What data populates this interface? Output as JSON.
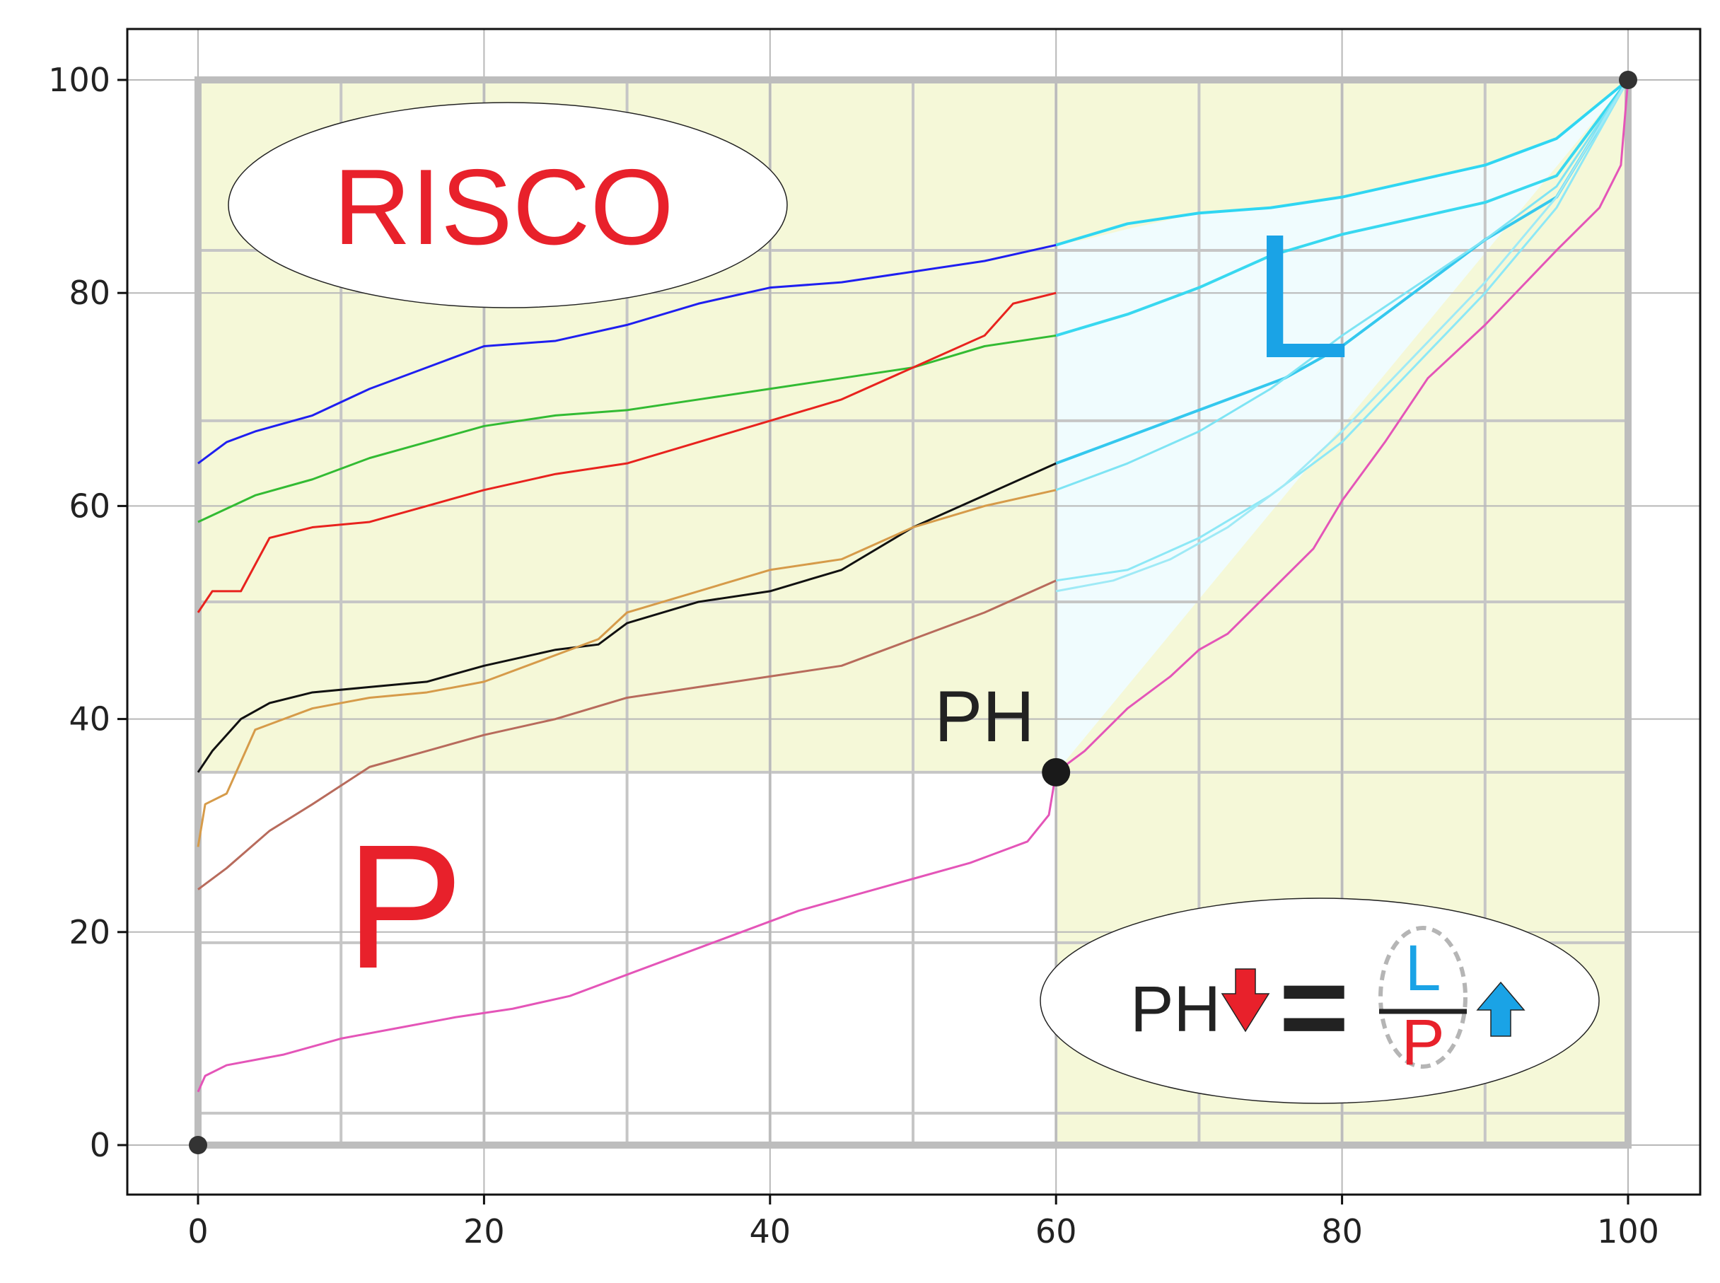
{
  "chart_data": {
    "type": "line",
    "title": "",
    "xlabel": "",
    "ylabel": "",
    "xlim": [
      -5,
      105
    ],
    "ylim": [
      -5,
      105
    ],
    "x_ticks": [
      0,
      20,
      40,
      60,
      80,
      100
    ],
    "y_ticks": [
      0,
      20,
      40,
      60,
      80,
      100
    ],
    "grid": true,
    "inner_grid_step": 10,
    "colors": {
      "plot_bg": "#f5f8d8",
      "light_region": "#f0fcfe",
      "white_region": "#ffffff",
      "grid_major": "#b8b8b8",
      "grid_inner": "#c6c6c6",
      "risco_text": "#e8212b",
      "p_text": "#e8212b",
      "l_text": "#1aa3e6",
      "ph_text": "#222222",
      "arrow_down": "#e8212b",
      "arrow_up": "#1aa3e6"
    },
    "annotations": {
      "risco": "RISCO",
      "p_label": "P",
      "l_label": "L",
      "ph_label": "PH",
      "formula_left": "PH",
      "formula_equals": "=",
      "formula_numerator": "L",
      "formula_denominator": "P"
    },
    "points": [
      {
        "x": 0,
        "y": 0
      },
      {
        "x": 100,
        "y": 100
      },
      {
        "x": 60,
        "y": 35
      }
    ],
    "series": [
      {
        "color": "#1f1ff0",
        "x": [
          0,
          2,
          4,
          8,
          12,
          16,
          20,
          25,
          30,
          35,
          40,
          45,
          50,
          55,
          60
        ],
        "y": [
          64,
          66,
          67,
          68.5,
          71,
          73,
          75,
          75.5,
          77,
          79,
          80.5,
          81,
          82,
          83,
          84.5
        ]
      },
      {
        "color": "#33bb33",
        "x": [
          0,
          4,
          8,
          12,
          16,
          20,
          25,
          30,
          35,
          40,
          45,
          50,
          55,
          60
        ],
        "y": [
          58.5,
          61,
          62.5,
          64.5,
          66,
          67.5,
          68.5,
          69,
          70,
          71,
          72,
          73,
          75,
          76
        ]
      },
      {
        "color": "#e8231e",
        "x": [
          0,
          1,
          3,
          5,
          8,
          12,
          16,
          20,
          25,
          30,
          35,
          40,
          45,
          50,
          55,
          57,
          60
        ],
        "y": [
          50,
          52,
          52,
          57,
          58,
          58.5,
          60,
          61.5,
          63,
          64,
          66,
          68,
          70,
          73,
          76,
          79,
          80
        ]
      },
      {
        "color": "#111111",
        "x": [
          0,
          1,
          3,
          5,
          8,
          12,
          16,
          20,
          25,
          28,
          30,
          35,
          40,
          45,
          50,
          55,
          60
        ],
        "y": [
          35,
          37,
          40,
          41.5,
          42.5,
          43,
          43.5,
          45,
          46.5,
          47,
          49,
          51,
          52,
          54,
          58,
          61,
          64
        ]
      },
      {
        "color": "#d69b4a",
        "x": [
          0,
          0.5,
          2,
          4,
          8,
          12,
          16,
          20,
          25,
          28,
          30,
          35,
          40,
          45,
          50,
          55,
          60
        ],
        "y": [
          28,
          32,
          33,
          39,
          41,
          42,
          42.5,
          43.5,
          46,
          47.5,
          50,
          52,
          54,
          55,
          58,
          60,
          61.5
        ]
      },
      {
        "color": "#b86b5c",
        "x": [
          0,
          2,
          5,
          8,
          12,
          16,
          20,
          25,
          30,
          35,
          40,
          45,
          50,
          55,
          60
        ],
        "y": [
          24,
          26,
          29.5,
          32,
          35.5,
          37,
          38.5,
          40,
          42,
          43,
          44,
          45,
          47.5,
          50,
          53
        ]
      },
      {
        "color": "#e455b8",
        "x": [
          0,
          0.5,
          2,
          6,
          10,
          14,
          18,
          22,
          26,
          30,
          34,
          38,
          42,
          46,
          50,
          54,
          58,
          59.5,
          60,
          62,
          65,
          68,
          70,
          72,
          75,
          78,
          80,
          83,
          86,
          90,
          95,
          98,
          99.5,
          100
        ],
        "y": [
          5,
          6.5,
          7.5,
          8.5,
          10,
          11,
          12,
          12.8,
          14,
          16,
          18,
          20,
          22,
          23.5,
          25,
          26.5,
          28.5,
          31,
          35,
          37,
          41,
          44,
          46.5,
          48,
          52,
          56,
          60.5,
          66,
          72,
          77,
          84,
          88,
          92,
          100
        ]
      },
      {
        "color": "#2fd6f2",
        "x": [
          60,
          65,
          70,
          75,
          80,
          85,
          90,
          95,
          100
        ],
        "y": [
          84.5,
          86.5,
          87.5,
          88,
          89,
          90.5,
          92,
          94.5,
          100
        ]
      },
      {
        "color": "#38d8f0",
        "x": [
          60,
          65,
          70,
          75,
          80,
          85,
          90,
          95,
          100
        ],
        "y": [
          76,
          78,
          80.5,
          83.5,
          85.5,
          87,
          88.5,
          91,
          100
        ]
      },
      {
        "color": "#34c8ee",
        "x": [
          60,
          63,
          68,
          72,
          76,
          80,
          85,
          90,
          95,
          100
        ],
        "y": [
          64,
          65.5,
          68,
          70,
          72,
          75,
          80,
          85,
          89,
          100
        ]
      },
      {
        "color": "#7ee4f4",
        "x": [
          60,
          65,
          70,
          75,
          80,
          85,
          90,
          95,
          100
        ],
        "y": [
          61.5,
          64,
          67,
          71,
          76,
          80.5,
          85,
          90,
          100
        ]
      },
      {
        "color": "#8de8f6",
        "x": [
          60,
          65,
          70,
          75,
          80,
          85,
          90,
          95,
          100
        ],
        "y": [
          53,
          54,
          57,
          61,
          66,
          73,
          80,
          88,
          100
        ]
      },
      {
        "color": "#9feaf6",
        "x": [
          60,
          64,
          68,
          72,
          76,
          80,
          85,
          90,
          95,
          100
        ],
        "y": [
          52,
          53,
          55,
          58,
          62,
          67,
          74,
          81,
          89,
          100
        ]
      }
    ]
  }
}
